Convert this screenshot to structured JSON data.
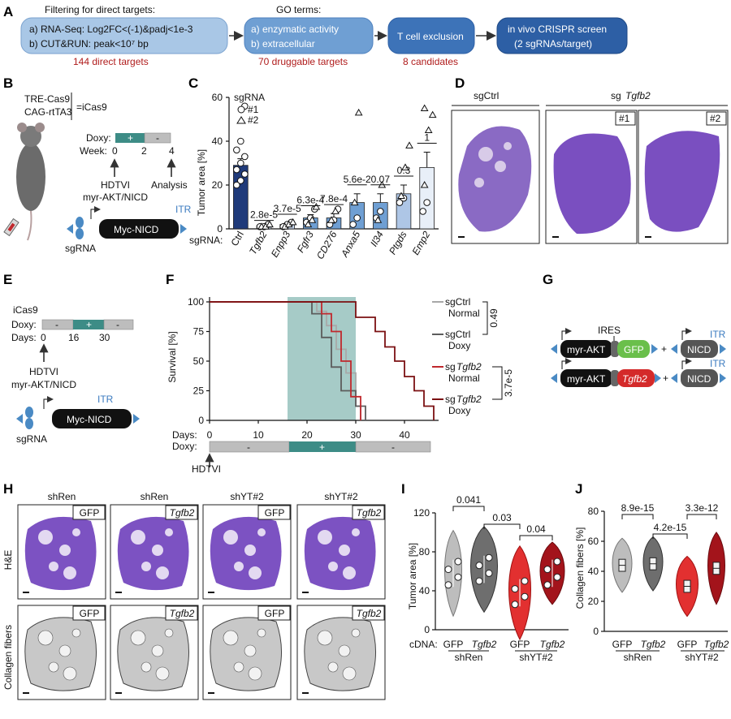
{
  "panels": {
    "A": "A",
    "B": "B",
    "C": "C",
    "D": "D",
    "E": "E",
    "F": "F",
    "G": "G",
    "H": "H",
    "I": "I",
    "J": "J"
  },
  "panelA": {
    "box1": {
      "title": "Filtering for direct targets:",
      "l1": "a) RNA-Seq: Log2FC<(-1)&padj<1e-3",
      "l2": "b) CUT&RUN: peak<10⁷ bp",
      "note": "144 direct targets"
    },
    "box2": {
      "title": "GO terms:",
      "l1": "a) enzymatic activity",
      "l2": "b) extracellular",
      "note": "70 druggable targets"
    },
    "box3": {
      "l1": "T cell exclusion",
      "note": "8 candidates"
    },
    "box4": {
      "l1": "in vivo CRISPR screen",
      "l2": "(2 sgRNAs/target)"
    },
    "colors": {
      "light": "#a9c7e6",
      "mid": "#6f9fd3",
      "dark": "#3d73b8",
      "darker": "#2d5fa5",
      "note": "#b01c1c"
    }
  },
  "panelB": {
    "line1": "TRE-Cas9",
    "line2": "CAG-rtTA3",
    "icas": "=iCas9",
    "doxy": "Doxy:",
    "plus": "+",
    "minus": "-",
    "week": "Week:",
    "ticks": [
      "0",
      "2",
      "4"
    ],
    "hdtvi": "HDTVI",
    "myr": "myr-AKT/NICD",
    "analysis": "Analysis",
    "construct": "Myc-NICD",
    "itr": "ITR",
    "sgrna": "sgRNA"
  },
  "panelC": {
    "ylabel": "Tumor area [%]",
    "legend_title": "sgRNA",
    "legend_1": "#1",
    "legend_2": "#2",
    "xaxis_prefix": "sgRNA:"
  },
  "chart_data": {
    "type": "bar",
    "title": "",
    "ylabel": "Tumor area [%]",
    "ylim": [
      0,
      60
    ],
    "yticks": [
      0,
      20,
      40,
      60
    ],
    "categories": [
      "Ctrl",
      "Tgfb2",
      "Enpp3",
      "Fgfr3",
      "CD276",
      "Anxa5",
      "Il34",
      "Ptgds",
      "Emp2"
    ],
    "values": [
      29,
      1.5,
      2,
      5,
      5,
      12,
      12,
      16,
      28
    ],
    "errors": [
      3,
      0.5,
      0.6,
      1.5,
      2,
      4,
      4,
      4,
      7
    ],
    "pvalues": [
      "",
      "2.8e-5",
      "3.7e-5",
      "6.3e-4",
      "7.8e-4",
      "5.6e-2",
      "0.07",
      "0.3",
      "1"
    ],
    "bar_colors": [
      "#1f3a7a",
      "#c7d7ee",
      "#c7d7ee",
      "#6f9fd3",
      "#6f9fd3",
      "#6f9fd3",
      "#6f9fd3",
      "#aec6e6",
      "#e8eff8"
    ],
    "points_1": [
      [
        20,
        22,
        25,
        27,
        30,
        33,
        36,
        40,
        56
      ],
      [
        1,
        1,
        2
      ],
      [
        1,
        2,
        3
      ],
      [
        3,
        5,
        9
      ],
      [
        2,
        4,
        9
      ],
      [
        2,
        5
      ],
      [
        5,
        8
      ],
      [
        12,
        14
      ],
      [
        8,
        12
      ]
    ],
    "points_2": [
      [],
      [
        1,
        1,
        2
      ],
      [
        1,
        2,
        3
      ],
      [
        2,
        4,
        10
      ],
      [
        4,
        8
      ],
      [
        12,
        53
      ],
      [
        4,
        20
      ],
      [
        15,
        28,
        38
      ],
      [
        20,
        45,
        52,
        55
      ]
    ]
  },
  "panelD": {
    "sgctrl": "sgCtrl",
    "sgtgfb2_prefix": "sg",
    "sgtgfb2_gene": "Tgfb2",
    "n1": "#1",
    "n2": "#2"
  },
  "panelE": {
    "title": "iCas9",
    "doxy": "Doxy:",
    "days": "Days:",
    "ticks": [
      "0",
      "16",
      "30"
    ],
    "plus": "+",
    "minus": "-",
    "hdtvi": "HDTVI",
    "myr": "myr-AKT/NICD",
    "construct": "Myc-NICD",
    "itr": "ITR",
    "sgrna": "sgRNA"
  },
  "panelF": {
    "ylabel": "Survival [%]",
    "yticks": [
      "0",
      "25",
      "50",
      "75",
      "100"
    ],
    "xticks": [
      "0",
      "10",
      "20",
      "30",
      "40"
    ],
    "days": "Days:",
    "doxy": "Doxy:",
    "hdtvi": "HDTVI",
    "legend": [
      {
        "a": "sgCtrl",
        "b": "Normal",
        "color": "#a8a8a8"
      },
      {
        "a": "sgCtrl",
        "b": "Doxy",
        "color": "#5c5c5c"
      },
      {
        "a": "sg",
        "gene": "Tgfb2",
        "b": "Normal",
        "color": "#c0282d"
      },
      {
        "a": "sg",
        "gene": "Tgfb2",
        "b": "Doxy",
        "color": "#7b1012"
      }
    ],
    "p1": "0.49",
    "p2": "3.7e-5",
    "plus": "+",
    "minus": "-"
  },
  "panelG": {
    "myr": "myr-AKT",
    "ires": "IRES",
    "gfp": "GFP",
    "tgfb2": "Tgfb2",
    "nicd": "NICD",
    "itr": "ITR",
    "plus": "+"
  },
  "panelH": {
    "cols": [
      "shRen",
      "shRen",
      "shYT#2",
      "shYT#2"
    ],
    "tags": [
      "GFP",
      "Tgfb2",
      "GFP",
      "Tgfb2"
    ],
    "row1": "H&E",
    "row2": "Collagen fibers"
  },
  "panelI": {
    "ylabel": "Tumor area [%]",
    "yticks": [
      "0",
      "40",
      "80",
      "120"
    ],
    "xlabel_prefix": "cDNA:",
    "x": [
      "GFP",
      "Tgfb2",
      "GFP",
      "Tgfb2"
    ],
    "groups": [
      "shRen",
      "shYT#2"
    ],
    "p1": "0.041",
    "p2": "0.03",
    "p3": "0.04"
  },
  "panelJ": {
    "ylabel": "Collagen fibers [%]",
    "yticks": [
      "0",
      "20",
      "40",
      "60",
      "80"
    ],
    "x": [
      "GFP",
      "Tgfb2",
      "GFP",
      "Tgfb2"
    ],
    "groups": [
      "shRen",
      "shYT#2"
    ],
    "p1": "8.9e-15",
    "p2": "4.2e-15",
    "p3": "3.3e-12"
  }
}
